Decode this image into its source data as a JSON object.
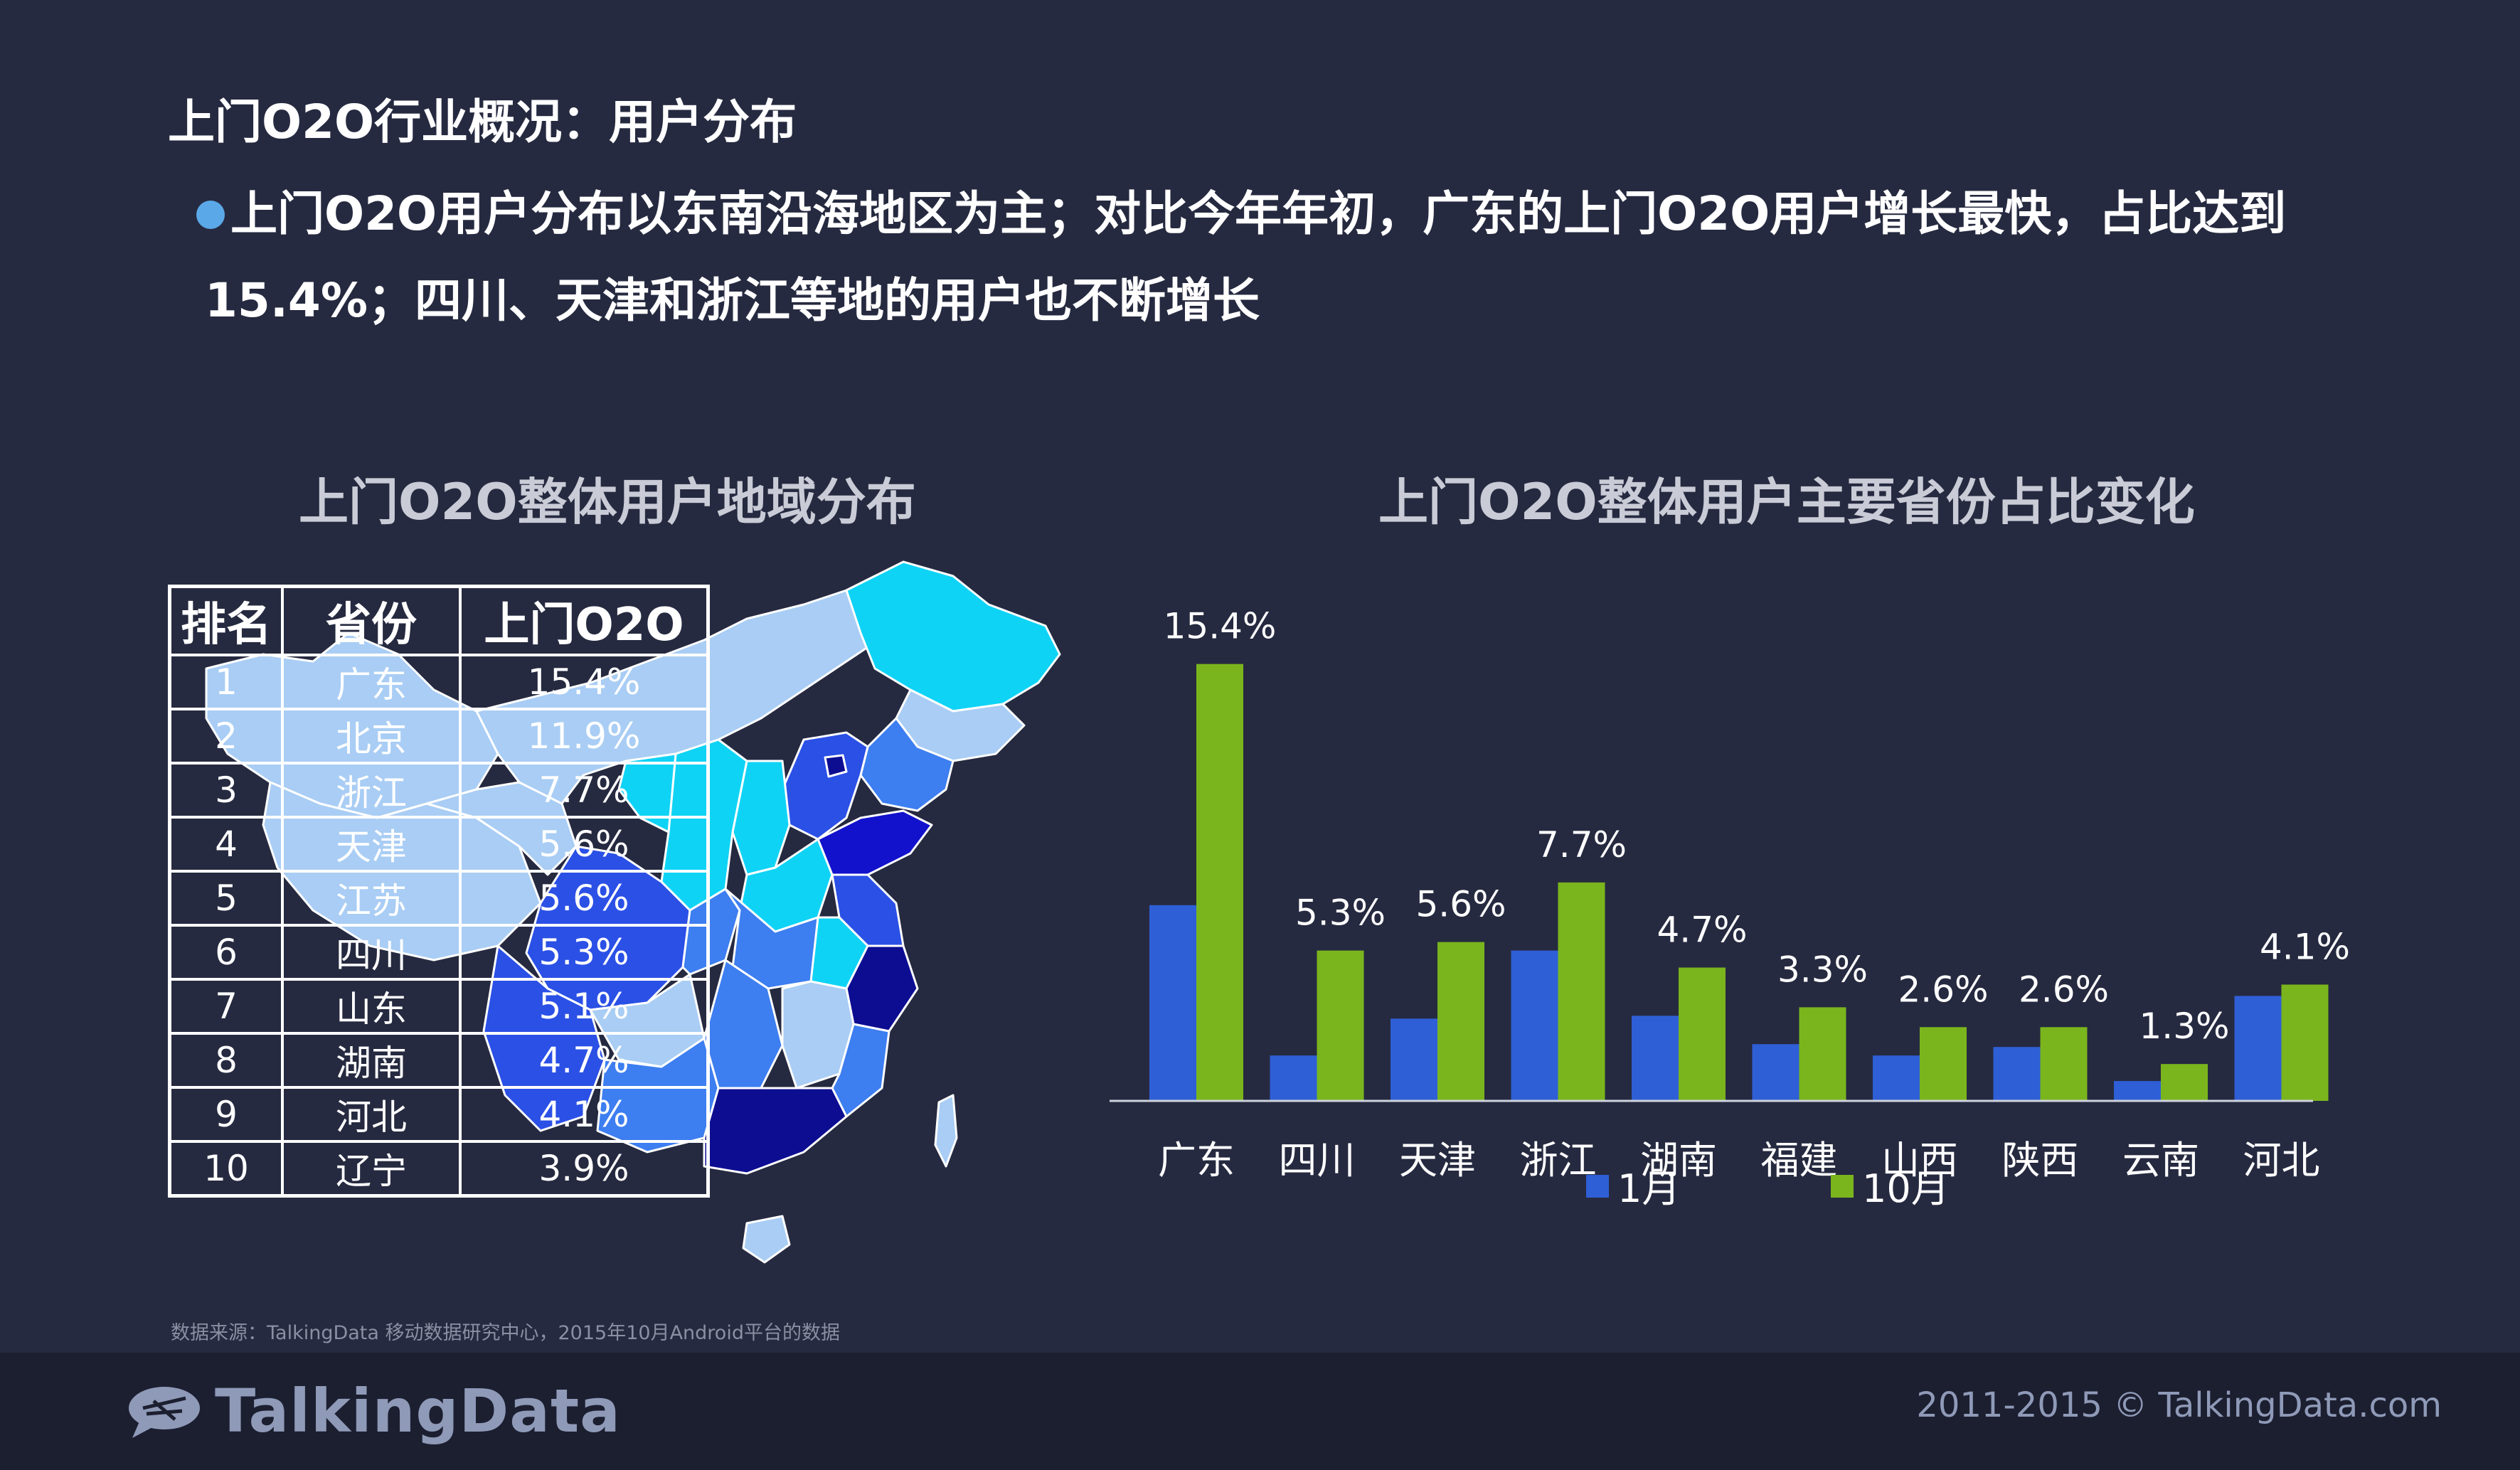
{
  "page": {
    "title": "上门O2O行业概况：用户分布",
    "bullet_line1": "上门O2O用户分布以东南沿海地区为主；对比今年年初，广东的上门O2O用户增长最快，占比达到",
    "bullet_line2": "15.4%；四川、天津和浙江等地的用户也不断增长"
  },
  "map_section": {
    "title": "上门O2O整体用户地域分布",
    "table": {
      "headers": [
        "排名",
        "省份",
        "上门O2O"
      ],
      "rows": [
        {
          "rank": "1",
          "province": "广东",
          "share": "15.4%"
        },
        {
          "rank": "2",
          "province": "北京",
          "share": "11.9%"
        },
        {
          "rank": "3",
          "province": "浙江",
          "share": "7.7%"
        },
        {
          "rank": "4",
          "province": "天津",
          "share": "5.6%"
        },
        {
          "rank": "5",
          "province": "江苏",
          "share": "5.6%"
        },
        {
          "rank": "6",
          "province": "四川",
          "share": "5.3%"
        },
        {
          "rank": "7",
          "province": "山东",
          "share": "5.1%"
        },
        {
          "rank": "8",
          "province": "湖南",
          "share": "4.7%"
        },
        {
          "rank": "9",
          "province": "河北",
          "share": "4.1%"
        },
        {
          "rank": "10",
          "province": "辽宁",
          "share": "3.9%"
        }
      ]
    },
    "map_colors": {
      "lightest": "#a9cdf4",
      "cyan": "#0fd3f5",
      "medium": "#3d7ef0",
      "strong": "#2b50e6",
      "dark": "#1212cc",
      "darkest": "#0d0d92"
    }
  },
  "chart_section": {
    "title": "上门O2O整体用户主要省份占比变化"
  },
  "chart_data": {
    "type": "bar",
    "categories": [
      "广东",
      "四川",
      "天津",
      "浙江",
      "湖南",
      "福建",
      "山西",
      "陕西",
      "云南",
      "河北"
    ],
    "series": [
      {
        "name": "1月",
        "color": "#2f5fd6",
        "values": [
          6.9,
          1.6,
          2.9,
          5.3,
          3.0,
          2.0,
          1.6,
          1.9,
          0.7,
          3.7
        ]
      },
      {
        "name": "10月",
        "color": "#7ab51d",
        "values": [
          15.4,
          5.3,
          5.6,
          7.7,
          4.7,
          3.3,
          2.6,
          2.6,
          1.3,
          4.1
        ]
      }
    ],
    "data_labels": [
      "15.4%",
      "5.3%",
      "5.6%",
      "7.7%",
      "4.7%",
      "3.3%",
      "2.6%",
      "2.6%",
      "1.3%",
      "4.1%"
    ],
    "ylim": [
      0,
      16
    ],
    "legend": "bottom-center"
  },
  "footer": {
    "source": "数据来源：TalkingData 移动数据研究中心，2015年10月Android平台的数据",
    "logo_text": "TalkingData",
    "copyright": "2011-2015 © TalkingData.com"
  }
}
